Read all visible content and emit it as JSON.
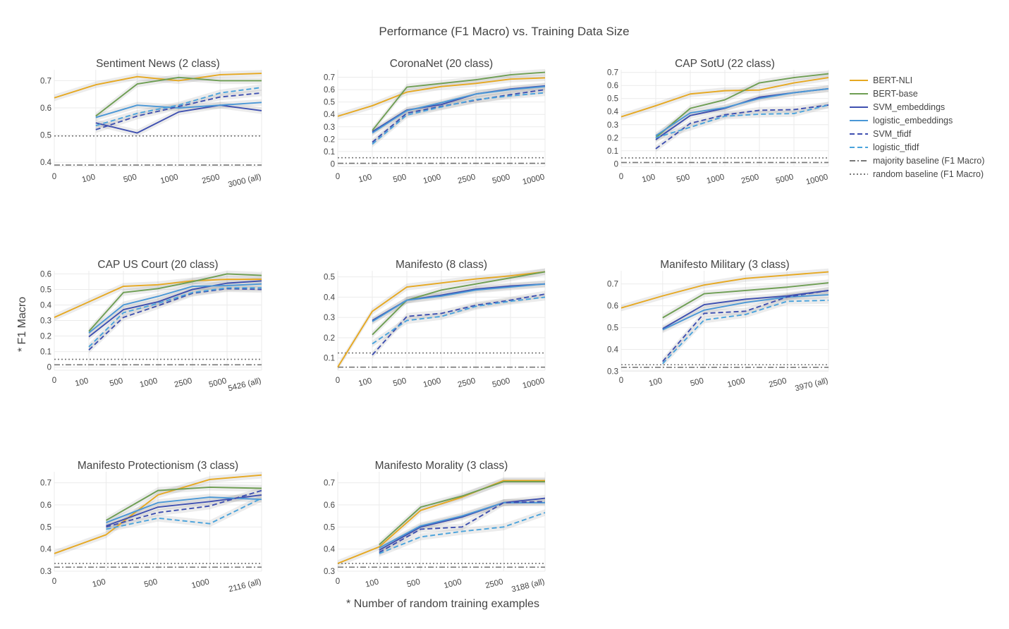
{
  "figure": {
    "title": "Performance (F1 Macro) vs. Training Data Size",
    "ylabel": "* F1 Macro",
    "xlabel": "* Number of random training examples"
  },
  "legend": {
    "placement": "right",
    "items": [
      {
        "name": "BERT-NLI",
        "color": "#e6a821",
        "dash": "solid"
      },
      {
        "name": "BERT-base",
        "color": "#6e9e53",
        "dash": "solid"
      },
      {
        "name": "SVM_embeddings",
        "color": "#3e4fb0",
        "dash": "solid"
      },
      {
        "name": "logistic_embeddings",
        "color": "#4a97d6",
        "dash": "solid"
      },
      {
        "name": "SVM_tfidf",
        "color": "#3e4fb0",
        "dash": "dash"
      },
      {
        "name": "logistic_tfidf",
        "color": "#4aa3dc",
        "dash": "dash"
      },
      {
        "name": "majority baseline (F1 Macro)",
        "color": "#777777",
        "dash": "dashdot"
      },
      {
        "name": "random baseline (F1 Macro)",
        "color": "#777777",
        "dash": "dot"
      }
    ]
  },
  "chart_data": [
    {
      "type": "line",
      "title": "Sentiment News (2 class)",
      "x_labels": [
        "0",
        "100",
        "500",
        "1000",
        "2500",
        "3000 (all)"
      ],
      "ylim": [
        0.385,
        0.74
      ],
      "yticks": [
        0.4,
        0.5,
        0.6,
        0.7
      ],
      "grid": true,
      "series": [
        {
          "name": "BERT-NLI",
          "values": [
            0.637,
            0.685,
            0.715,
            0.7,
            0.722,
            0.727
          ]
        },
        {
          "name": "BERT-base",
          "values": [
            null,
            0.57,
            0.688,
            0.712,
            0.7,
            0.7
          ]
        },
        {
          "name": "SVM_embeddings",
          "values": [
            null,
            0.545,
            0.508,
            0.585,
            0.61,
            0.59
          ]
        },
        {
          "name": "logistic_embeddings",
          "values": [
            null,
            0.565,
            0.61,
            0.6,
            0.61,
            0.62
          ]
        },
        {
          "name": "SVM_tfidf",
          "values": [
            null,
            0.52,
            0.57,
            0.605,
            0.64,
            0.655
          ]
        },
        {
          "name": "logistic_tfidf",
          "values": [
            null,
            0.535,
            0.58,
            0.61,
            0.655,
            0.675
          ]
        }
      ],
      "baselines": {
        "majority": 0.39,
        "random": 0.497
      }
    },
    {
      "type": "line",
      "title": "CoronaNet (20 class)",
      "x_labels": [
        "0",
        "100",
        "500",
        "1000",
        "2500",
        "5000",
        "10000"
      ],
      "ylim": [
        -0.02,
        0.76
      ],
      "yticks": [
        0,
        0.1,
        0.2,
        0.3,
        0.4,
        0.5,
        0.6,
        0.7
      ],
      "grid": true,
      "series": [
        {
          "name": "BERT-NLI",
          "values": [
            0.385,
            0.47,
            0.58,
            0.625,
            0.65,
            0.685,
            0.695
          ]
        },
        {
          "name": "BERT-base",
          "values": [
            null,
            0.27,
            0.62,
            0.65,
            0.68,
            0.72,
            0.74
          ]
        },
        {
          "name": "SVM_embeddings",
          "values": [
            null,
            0.26,
            0.435,
            0.48,
            0.565,
            0.605,
            0.63
          ]
        },
        {
          "name": "logistic_embeddings",
          "values": [
            null,
            0.25,
            0.43,
            0.495,
            0.565,
            0.6,
            0.625
          ]
        },
        {
          "name": "SVM_tfidf",
          "values": [
            null,
            0.175,
            0.41,
            0.465,
            0.515,
            0.56,
            0.6
          ]
        },
        {
          "name": "logistic_tfidf",
          "values": [
            null,
            0.16,
            0.395,
            0.46,
            0.52,
            0.55,
            0.575
          ]
        }
      ],
      "baselines": {
        "majority": 0.005,
        "random": 0.05
      }
    },
    {
      "type": "line",
      "title": "CAP SotU (22 class)",
      "x_labels": [
        "0",
        "100",
        "500",
        "1000",
        "2500",
        "5000",
        "10000"
      ],
      "ylim": [
        -0.02,
        0.72
      ],
      "yticks": [
        0,
        0.1,
        0.2,
        0.3,
        0.4,
        0.5,
        0.6,
        0.7
      ],
      "grid": true,
      "series": [
        {
          "name": "BERT-NLI",
          "values": [
            0.36,
            0.445,
            0.535,
            0.56,
            0.565,
            0.62,
            0.66
          ]
        },
        {
          "name": "BERT-base",
          "values": [
            null,
            0.2,
            0.425,
            0.49,
            0.62,
            0.66,
            0.69
          ]
        },
        {
          "name": "SVM_embeddings",
          "values": [
            null,
            0.185,
            0.37,
            0.425,
            0.51,
            0.545,
            0.575
          ]
        },
        {
          "name": "logistic_embeddings",
          "values": [
            null,
            0.215,
            0.39,
            0.43,
            0.5,
            0.545,
            0.575
          ]
        },
        {
          "name": "SVM_tfidf",
          "values": [
            null,
            0.115,
            0.31,
            0.375,
            0.41,
            0.415,
            0.45
          ]
        },
        {
          "name": "logistic_tfidf",
          "values": [
            null,
            0.2,
            0.28,
            0.365,
            0.38,
            0.385,
            0.45
          ]
        }
      ],
      "baselines": {
        "majority": 0.01,
        "random": 0.045
      }
    },
    {
      "type": "line",
      "title": "CAP US Court (20 class)",
      "x_labels": [
        "0",
        "100",
        "500",
        "1000",
        "2500",
        "5000",
        "5426 (all)"
      ],
      "ylim": [
        -0.02,
        0.62
      ],
      "yticks": [
        0,
        0.1,
        0.2,
        0.3,
        0.4,
        0.5,
        0.6
      ],
      "grid": true,
      "series": [
        {
          "name": "BERT-NLI",
          "values": [
            0.32,
            0.42,
            0.52,
            0.53,
            0.555,
            0.565,
            0.565
          ]
        },
        {
          "name": "BERT-base",
          "values": [
            null,
            0.23,
            0.48,
            0.505,
            0.55,
            0.6,
            0.59
          ]
        },
        {
          "name": "SVM_embeddings",
          "values": [
            null,
            0.195,
            0.37,
            0.42,
            0.5,
            0.54,
            0.555
          ]
        },
        {
          "name": "logistic_embeddings",
          "values": [
            null,
            0.22,
            0.4,
            0.455,
            0.52,
            0.525,
            0.535
          ]
        },
        {
          "name": "SVM_tfidf",
          "values": [
            null,
            0.11,
            0.32,
            0.395,
            0.475,
            0.505,
            0.5
          ]
        },
        {
          "name": "logistic_tfidf",
          "values": [
            null,
            0.13,
            0.35,
            0.41,
            0.48,
            0.51,
            0.51
          ]
        }
      ],
      "baselines": {
        "majority": 0.015,
        "random": 0.05
      }
    },
    {
      "type": "line",
      "title": "Manifesto (8 class)",
      "x_labels": [
        "0",
        "100",
        "500",
        "1000",
        "2500",
        "5000",
        "10000"
      ],
      "ylim": [
        0.04,
        0.53
      ],
      "yticks": [
        0.1,
        0.2,
        0.3,
        0.4,
        0.5
      ],
      "grid": true,
      "series": [
        {
          "name": "BERT-NLI",
          "values": [
            0.055,
            0.33,
            0.45,
            0.47,
            0.49,
            0.505,
            0.525
          ]
        },
        {
          "name": "BERT-base",
          "values": [
            null,
            0.215,
            0.385,
            0.435,
            0.465,
            0.495,
            0.525
          ]
        },
        {
          "name": "SVM_embeddings",
          "values": [
            null,
            0.285,
            0.385,
            0.41,
            0.44,
            0.455,
            0.465
          ]
        },
        {
          "name": "logistic_embeddings",
          "values": [
            null,
            0.28,
            0.385,
            0.405,
            0.435,
            0.45,
            0.465
          ]
        },
        {
          "name": "SVM_tfidf",
          "values": [
            null,
            0.115,
            0.305,
            0.32,
            0.36,
            0.385,
            0.415
          ]
        },
        {
          "name": "logistic_tfidf",
          "values": [
            null,
            0.17,
            0.285,
            0.305,
            0.355,
            0.38,
            0.4
          ]
        }
      ],
      "baselines": {
        "majority": 0.055,
        "random": 0.125
      }
    },
    {
      "type": "line",
      "title": "Manifesto Military (3 class)",
      "x_labels": [
        "0",
        "100",
        "500",
        "1000",
        "2500",
        "3970 (all)"
      ],
      "ylim": [
        0.305,
        0.76
      ],
      "yticks": [
        0.3,
        0.4,
        0.5,
        0.6,
        0.7
      ],
      "grid": true,
      "series": [
        {
          "name": "BERT-NLI",
          "values": [
            0.59,
            0.645,
            0.695,
            0.725,
            0.74,
            0.755
          ]
        },
        {
          "name": "BERT-base",
          "values": [
            null,
            0.545,
            0.655,
            0.67,
            0.685,
            0.705
          ]
        },
        {
          "name": "SVM_embeddings",
          "values": [
            null,
            0.495,
            0.605,
            0.63,
            0.645,
            0.67
          ]
        },
        {
          "name": "logistic_embeddings",
          "values": [
            null,
            0.49,
            0.58,
            0.615,
            0.64,
            0.65
          ]
        },
        {
          "name": "SVM_tfidf",
          "values": [
            null,
            0.345,
            0.565,
            0.575,
            0.64,
            0.67
          ]
        },
        {
          "name": "logistic_tfidf",
          "values": [
            null,
            0.335,
            0.535,
            0.56,
            0.62,
            0.625
          ]
        }
      ],
      "baselines": {
        "majority": 0.318,
        "random": 0.33
      }
    },
    {
      "type": "line",
      "title": "Manifesto Protectionism (3 class)",
      "x_labels": [
        "0",
        "100",
        "500",
        "1000",
        "2116 (all)"
      ],
      "ylim": [
        0.3,
        0.75
      ],
      "yticks": [
        0.3,
        0.4,
        0.5,
        0.6,
        0.7
      ],
      "grid": true,
      "series": [
        {
          "name": "BERT-NLI",
          "values": [
            0.38,
            0.465,
            0.645,
            0.715,
            0.735
          ]
        },
        {
          "name": "BERT-base",
          "values": [
            null,
            0.53,
            0.665,
            0.68,
            0.675
          ]
        },
        {
          "name": "SVM_embeddings",
          "values": [
            null,
            0.505,
            0.59,
            0.615,
            0.645
          ]
        },
        {
          "name": "logistic_embeddings",
          "values": [
            null,
            0.52,
            0.61,
            0.635,
            0.625
          ]
        },
        {
          "name": "SVM_tfidf",
          "values": [
            null,
            0.5,
            0.565,
            0.595,
            0.665
          ]
        },
        {
          "name": "logistic_tfidf",
          "values": [
            null,
            0.49,
            0.54,
            0.515,
            0.63
          ]
        }
      ],
      "baselines": {
        "majority": 0.318,
        "random": 0.335
      }
    },
    {
      "type": "line",
      "title": "Manifesto Morality (3 class)",
      "x_labels": [
        "0",
        "100",
        "500",
        "1000",
        "2500",
        "3188 (all)"
      ],
      "ylim": [
        0.3,
        0.75
      ],
      "yticks": [
        0.3,
        0.4,
        0.5,
        0.6,
        0.7
      ],
      "grid": true,
      "series": [
        {
          "name": "BERT-NLI",
          "values": [
            0.335,
            0.41,
            0.575,
            0.635,
            0.71,
            0.71
          ]
        },
        {
          "name": "BERT-base",
          "values": [
            null,
            0.42,
            0.59,
            0.64,
            0.705,
            0.705
          ]
        },
        {
          "name": "SVM_embeddings",
          "values": [
            null,
            0.395,
            0.5,
            0.545,
            0.61,
            0.63
          ]
        },
        {
          "name": "logistic_embeddings",
          "values": [
            null,
            0.405,
            0.505,
            0.55,
            0.61,
            0.61
          ]
        },
        {
          "name": "SVM_tfidf",
          "values": [
            null,
            0.385,
            0.49,
            0.5,
            0.61,
            0.615
          ]
        },
        {
          "name": "logistic_tfidf",
          "values": [
            null,
            0.38,
            0.455,
            0.48,
            0.5,
            0.565
          ]
        }
      ],
      "baselines": {
        "majority": 0.318,
        "random": 0.335
      }
    }
  ]
}
